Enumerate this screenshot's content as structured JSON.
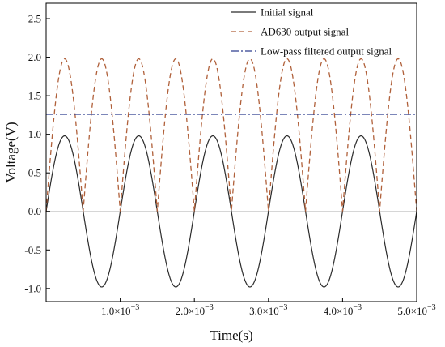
{
  "chart_data": {
    "type": "line",
    "xlabel": "Time(s)",
    "ylabel": "Voltage(V)",
    "xlim": [
      0,
      0.005
    ],
    "ylim": [
      -1.17,
      2.7
    ],
    "x_ticks": [
      {
        "value": 0.001,
        "mantissa": "1.0",
        "exponent": "−3"
      },
      {
        "value": 0.002,
        "mantissa": "2.0",
        "exponent": "−3"
      },
      {
        "value": 0.003,
        "mantissa": "3.0",
        "exponent": "−3"
      },
      {
        "value": 0.004,
        "mantissa": "4.0",
        "exponent": "−3"
      },
      {
        "value": 0.005,
        "mantissa": "5.0",
        "exponent": "−3"
      }
    ],
    "y_ticks": [
      {
        "value": -1.0,
        "label": "-1.0"
      },
      {
        "value": -0.5,
        "label": "-0.5"
      },
      {
        "value": 0.0,
        "label": "0.0"
      },
      {
        "value": 0.5,
        "label": "0.5"
      },
      {
        "value": 1.0,
        "label": "1.0"
      },
      {
        "value": 1.5,
        "label": "1.5"
      },
      {
        "value": 2.0,
        "label": "2.0"
      },
      {
        "value": 2.5,
        "label": "2.5"
      }
    ],
    "reference_line": {
      "y": 0.0,
      "color": "#c8c8c8"
    },
    "grid": false,
    "legend_position": "top-right",
    "series": [
      {
        "name": "Initial signal",
        "style": "solid",
        "color": "#2b2b2b",
        "x": [
          0,
          0.00025,
          0.0005,
          0.00075,
          0.001,
          0.00125,
          0.0015,
          0.00175,
          0.002,
          0.00225,
          0.0025,
          0.00275,
          0.003,
          0.00325,
          0.0035,
          0.00375,
          0.004,
          0.00425,
          0.0045,
          0.00475,
          0.005
        ],
        "values": [
          0,
          0.98,
          0,
          -0.98,
          0,
          0.98,
          0,
          -0.98,
          0,
          0.98,
          0,
          -0.98,
          0,
          0.98,
          0,
          -0.98,
          0,
          0.98,
          0,
          -0.98,
          0
        ]
      },
      {
        "name": "AD630 output signal",
        "style": "dashed",
        "color": "#b0603a",
        "x": [
          0,
          0.00025,
          0.0005,
          0.00075,
          0.001,
          0.00125,
          0.0015,
          0.00175,
          0.002,
          0.00225,
          0.0025,
          0.00275,
          0.003,
          0.00325,
          0.0035,
          0.00375,
          0.004,
          0.00425,
          0.0045,
          0.00475,
          0.005
        ],
        "values": [
          0,
          1.98,
          0,
          1.98,
          0,
          1.98,
          0,
          1.98,
          0,
          1.98,
          0,
          1.98,
          0,
          1.98,
          0,
          1.98,
          0,
          1.98,
          0,
          1.98,
          0
        ]
      },
      {
        "name": "Low-pass filtered output signal",
        "style": "dashdot",
        "color": "#2f3f8f",
        "x": [
          0,
          0.005
        ],
        "values": [
          1.26,
          1.26
        ]
      }
    ]
  }
}
